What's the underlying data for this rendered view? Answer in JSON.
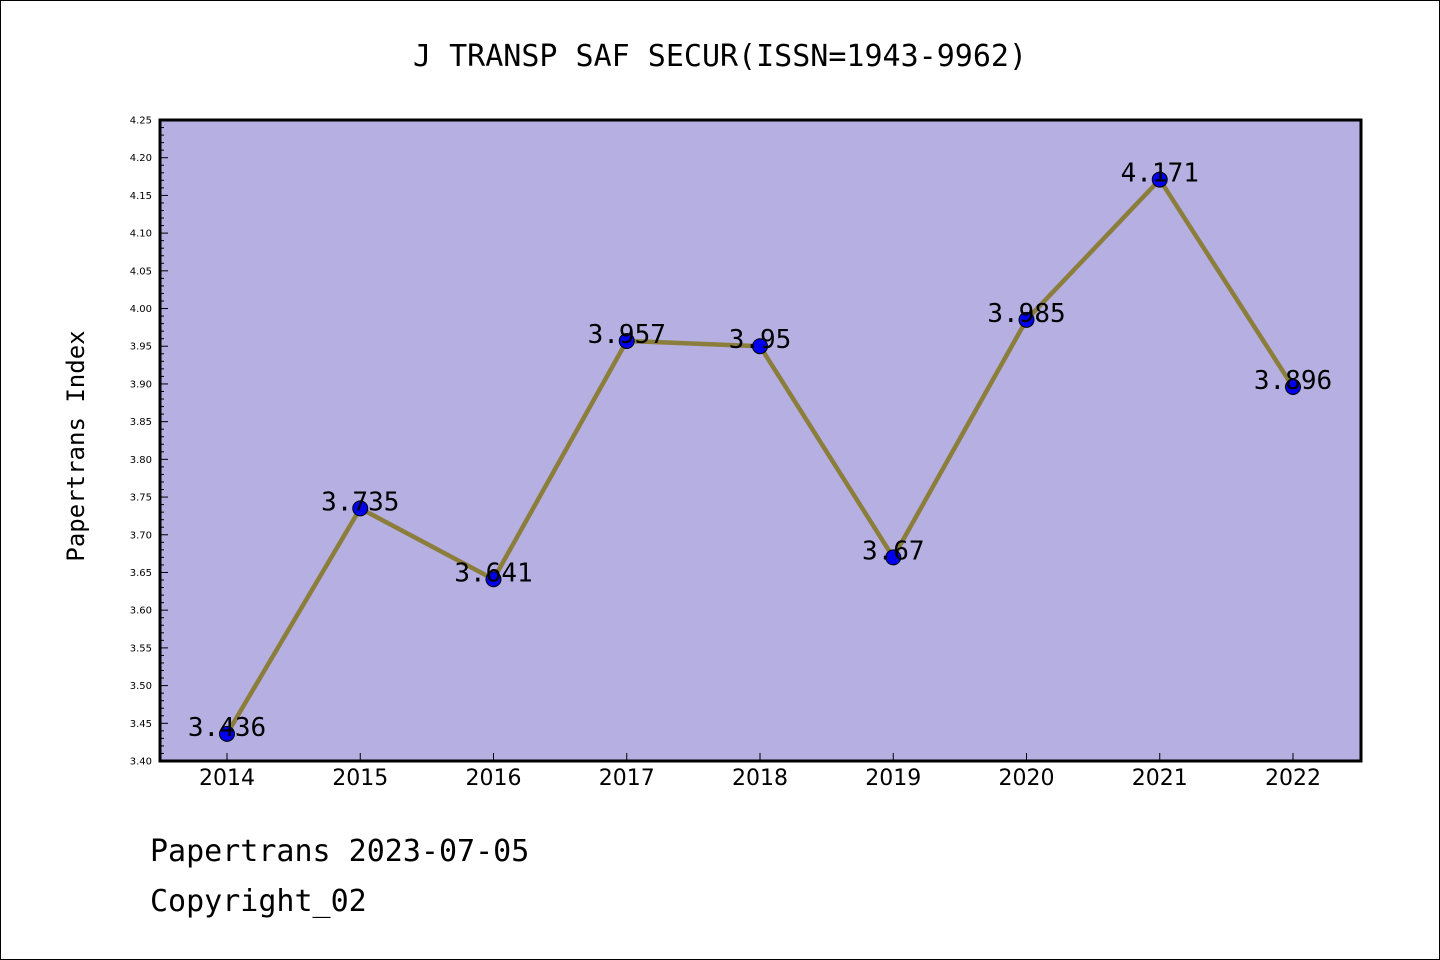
{
  "chart_data": {
    "type": "line",
    "title": "J TRANSP SAF SECUR(ISSN=1943-9962)",
    "xlabel": "",
    "ylabel": "Papertrans Index",
    "categories": [
      "2014",
      "2015",
      "2016",
      "2017",
      "2018",
      "2019",
      "2020",
      "2021",
      "2022"
    ],
    "values": [
      3.436,
      3.735,
      3.641,
      3.957,
      3.95,
      3.67,
      3.985,
      4.171,
      3.896
    ],
    "data_labels": [
      "3.436",
      "3.735",
      "3.641",
      "3.957",
      "3.95",
      "3.67",
      "3.985",
      "4.171",
      "3.896"
    ],
    "ylim": [
      3.4,
      4.25
    ],
    "yticks": [
      "3.40",
      "3.45",
      "3.50",
      "3.55",
      "3.60",
      "3.65",
      "3.70",
      "3.75",
      "3.80",
      "3.85",
      "3.90",
      "3.95",
      "4.00",
      "4.05",
      "4.10",
      "4.15",
      "4.20",
      "4.25"
    ],
    "grid": false,
    "colors": {
      "plot_background": "#b5afe2",
      "line": "#8b7d3a",
      "marker": "#0000ee"
    }
  },
  "footer": {
    "line1": "Papertrans 2023-07-05",
    "line2": "Copyright_02"
  }
}
